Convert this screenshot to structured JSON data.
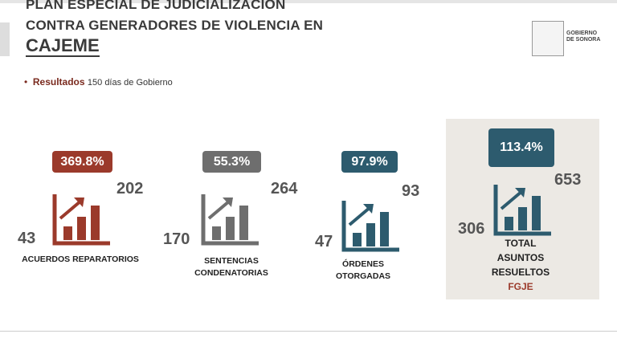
{
  "header": {
    "title_lines": [
      "PLAN ESPECIAL DE JUDICIALIZACIÓN",
      "CONTRA GENERADORES DE VIOLENCIA EN"
    ],
    "city": "CAJEME"
  },
  "logo": [
    "GOBIERNO",
    "DE SONORA"
  ],
  "bullet": {
    "label": "Resultados",
    "text": "150 días de Gobierno"
  },
  "blocks": [
    {
      "percent": "369.8%",
      "before": "43",
      "after": "202",
      "label_lines": [
        "ACUERDOS REPARATORIOS"
      ],
      "color": "#9b3a2b"
    },
    {
      "percent": "55.3%",
      "before": "170",
      "after": "264",
      "label_lines": [
        "SENTENCIAS",
        "CONDENATORIAS"
      ],
      "color": "#6e6e6e"
    },
    {
      "percent": "97.9%",
      "before": "47",
      "after": "93",
      "label_lines": [
        "ÓRDENES",
        "OTORGADAS"
      ],
      "color": "#2d5b6e"
    },
    {
      "percent": "113.4%",
      "before": "306",
      "after": "653",
      "label_lines": [
        "TOTAL",
        "ASUNTOS",
        "RESUELTOS"
      ],
      "footer": "FGJE",
      "color": "#2d5b6e"
    }
  ]
}
